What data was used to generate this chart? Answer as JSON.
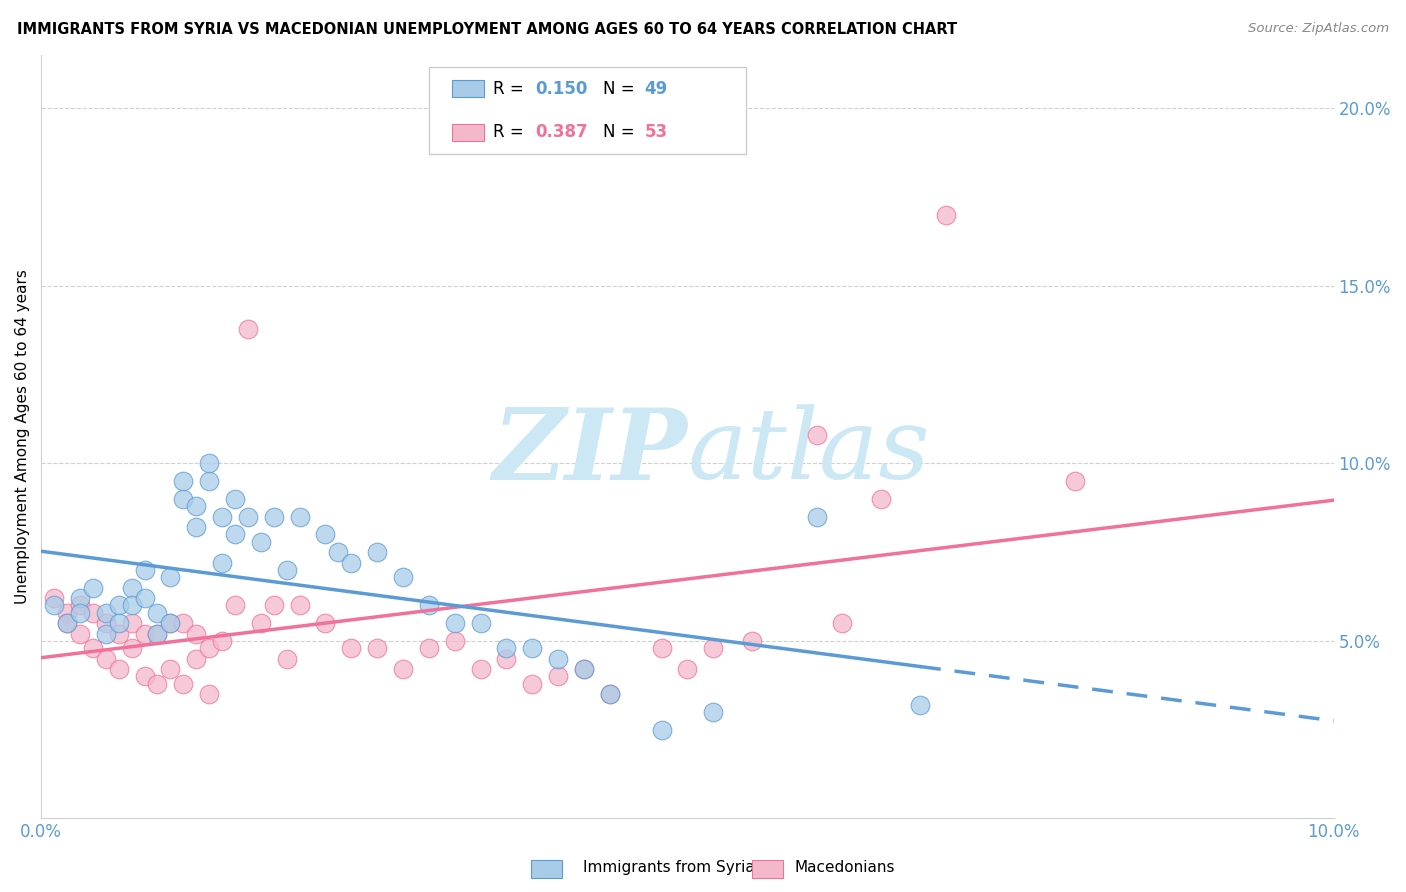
{
  "title": "IMMIGRANTS FROM SYRIA VS MACEDONIAN UNEMPLOYMENT AMONG AGES 60 TO 64 YEARS CORRELATION CHART",
  "source": "Source: ZipAtlas.com",
  "ylabel": "Unemployment Among Ages 60 to 64 years",
  "xmin": 0.0,
  "xmax": 0.1,
  "ymin": 0.0,
  "ymax": 0.215,
  "yticks": [
    0.05,
    0.1,
    0.15,
    0.2
  ],
  "ytick_labels": [
    "5.0%",
    "10.0%",
    "15.0%",
    "20.0%"
  ],
  "legend_r1": "R = 0.150",
  "legend_n1": "N = 49",
  "legend_r2": "R = 0.387",
  "legend_n2": "N = 53",
  "color_blue": "#a8cce8",
  "color_pink": "#f4b8cb",
  "color_blue_line": "#5b9bd5",
  "color_pink_line": "#f0719a",
  "color_blue_text": "#5b9bd5",
  "color_pink_text": "#f0719a",
  "watermark_color": "#cde8f5",
  "syria_x": [
    0.001,
    0.002,
    0.003,
    0.003,
    0.004,
    0.005,
    0.005,
    0.006,
    0.006,
    0.007,
    0.007,
    0.008,
    0.008,
    0.009,
    0.009,
    0.01,
    0.01,
    0.011,
    0.011,
    0.012,
    0.012,
    0.013,
    0.013,
    0.014,
    0.014,
    0.015,
    0.015,
    0.016,
    0.017,
    0.018,
    0.019,
    0.02,
    0.022,
    0.023,
    0.024,
    0.026,
    0.028,
    0.03,
    0.032,
    0.034,
    0.036,
    0.038,
    0.04,
    0.042,
    0.044,
    0.048,
    0.052,
    0.06,
    0.068
  ],
  "syria_y": [
    0.06,
    0.055,
    0.062,
    0.058,
    0.065,
    0.058,
    0.052,
    0.06,
    0.055,
    0.065,
    0.06,
    0.07,
    0.062,
    0.058,
    0.052,
    0.068,
    0.055,
    0.09,
    0.095,
    0.088,
    0.082,
    0.095,
    0.1,
    0.085,
    0.072,
    0.09,
    0.08,
    0.085,
    0.078,
    0.085,
    0.07,
    0.085,
    0.08,
    0.075,
    0.072,
    0.075,
    0.068,
    0.06,
    0.055,
    0.055,
    0.048,
    0.048,
    0.045,
    0.042,
    0.035,
    0.025,
    0.03,
    0.085,
    0.032
  ],
  "mac_x": [
    0.001,
    0.002,
    0.002,
    0.003,
    0.003,
    0.004,
    0.004,
    0.005,
    0.005,
    0.006,
    0.006,
    0.007,
    0.007,
    0.008,
    0.008,
    0.009,
    0.009,
    0.01,
    0.01,
    0.011,
    0.011,
    0.012,
    0.012,
    0.013,
    0.013,
    0.014,
    0.015,
    0.016,
    0.017,
    0.018,
    0.019,
    0.02,
    0.022,
    0.024,
    0.026,
    0.028,
    0.03,
    0.032,
    0.034,
    0.036,
    0.038,
    0.04,
    0.042,
    0.044,
    0.048,
    0.05,
    0.052,
    0.055,
    0.06,
    0.062,
    0.065,
    0.07,
    0.08
  ],
  "mac_y": [
    0.062,
    0.058,
    0.055,
    0.06,
    0.052,
    0.058,
    0.048,
    0.055,
    0.045,
    0.052,
    0.042,
    0.055,
    0.048,
    0.052,
    0.04,
    0.052,
    0.038,
    0.055,
    0.042,
    0.055,
    0.038,
    0.052,
    0.045,
    0.048,
    0.035,
    0.05,
    0.06,
    0.138,
    0.055,
    0.06,
    0.045,
    0.06,
    0.055,
    0.048,
    0.048,
    0.042,
    0.048,
    0.05,
    0.042,
    0.045,
    0.038,
    0.04,
    0.042,
    0.035,
    0.048,
    0.042,
    0.048,
    0.05,
    0.108,
    0.055,
    0.09,
    0.17,
    0.095
  ]
}
